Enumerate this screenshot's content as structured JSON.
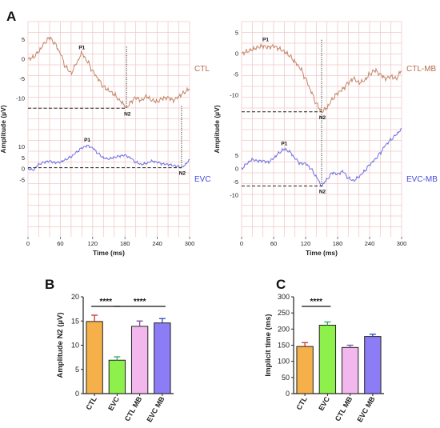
{
  "colors": {
    "grid": "#f1c9c9",
    "ctl_trace": "#c4866a",
    "evc_trace": "#6f6fe3",
    "ctl_label": "#b66a4c",
    "evc_label": "#4a4ae0",
    "bar_ctl": "#f5b04a",
    "bar_evc": "#8ef04a",
    "bar_ctl_mb": "#f2b8ee",
    "bar_evc_mb": "#8c7cf5",
    "err_ctl": "#c0392b",
    "err_evc": "#2ea46a",
    "err_ctl_mb": "#7a4aa0",
    "err_evc_mb": "#2a4ab0"
  },
  "panel_labels": {
    "a": "A",
    "b": "B",
    "c": "C"
  },
  "chart_data": [
    {
      "id": "A-left",
      "type": "line",
      "xlabel": "Time (ms)",
      "ylabel": "Amplitude (µV)",
      "xticks": [
        "0",
        "60",
        "120",
        "180",
        "240",
        "300"
      ],
      "yticks_upper": [
        "5",
        "0",
        "-5",
        "-10"
      ],
      "yticks_lower": [
        "10",
        "5",
        "0",
        "-5"
      ],
      "xlim": [
        0,
        300
      ],
      "grid": true,
      "series": [
        {
          "name": "CTL",
          "peak_labels": [
            "P1",
            "N2"
          ],
          "p1": [
            100,
            1.5
          ],
          "n2": [
            183,
            -12.5
          ],
          "x": [
            0,
            10,
            20,
            30,
            40,
            50,
            60,
            70,
            80,
            90,
            100,
            110,
            120,
            130,
            140,
            150,
            160,
            170,
            180,
            183,
            190,
            200,
            210,
            220,
            230,
            240,
            250,
            260,
            270,
            280,
            290,
            300
          ],
          "y": [
            0,
            0.5,
            2,
            4,
            5.5,
            4,
            1.5,
            -2,
            -3.5,
            -1,
            1.5,
            -0.5,
            -3,
            -5,
            -7,
            -8,
            -9,
            -10.5,
            -11.8,
            -12.5,
            -11,
            -9.8,
            -10.5,
            -9.5,
            -10.5,
            -10.8,
            -10,
            -9.8,
            -10.5,
            -9.5,
            -8.5,
            -7.5
          ]
        },
        {
          "name": "EVC",
          "peak_labels": [
            "P1",
            "N2"
          ],
          "p1": [
            110,
            10.5
          ],
          "n2": [
            285,
            0.5
          ],
          "x": [
            0,
            10,
            20,
            30,
            40,
            50,
            60,
            70,
            80,
            90,
            100,
            110,
            120,
            130,
            140,
            150,
            160,
            170,
            180,
            190,
            200,
            210,
            220,
            230,
            240,
            250,
            260,
            270,
            280,
            285,
            290,
            300
          ],
          "y": [
            0,
            -0.5,
            2,
            3,
            3.5,
            2.8,
            3,
            4.2,
            5.5,
            7.5,
            9.5,
            10.5,
            9.5,
            7,
            5,
            4.5,
            5.2,
            5.8,
            6.2,
            5,
            3,
            2,
            2.5,
            3.5,
            3,
            2.2,
            2,
            1.5,
            1,
            0.5,
            1.5,
            4
          ]
        }
      ]
    },
    {
      "id": "A-right",
      "type": "line",
      "xlabel": "Time (ms)",
      "ylabel": "Amplitude (µV)",
      "xticks": [
        "0",
        "60",
        "120",
        "180",
        "240",
        "300"
      ],
      "yticks_upper": [
        "5",
        "0",
        "-5",
        "-10"
      ],
      "yticks_lower": [
        "5",
        "0",
        "-5",
        "-10"
      ],
      "xlim": [
        0,
        300
      ],
      "grid": true,
      "series": [
        {
          "name": "CTL-MB",
          "peak_labels": [
            "P1",
            "N2"
          ],
          "p1": [
            45,
            2
          ],
          "n2": [
            150,
            -14
          ],
          "x": [
            0,
            10,
            20,
            30,
            40,
            50,
            60,
            70,
            80,
            90,
            100,
            110,
            120,
            130,
            140,
            150,
            160,
            170,
            180,
            190,
            200,
            210,
            220,
            230,
            240,
            250,
            260,
            270,
            280,
            290,
            300
          ],
          "y": [
            0,
            0.5,
            1,
            1.5,
            1.8,
            1.5,
            1.8,
            1.2,
            0.5,
            -0.5,
            -2,
            -3.5,
            -6,
            -9,
            -12,
            -14,
            -13,
            -11,
            -9.5,
            -8.5,
            -7,
            -6,
            -7,
            -6.5,
            -5,
            -4,
            -5,
            -6,
            -5.5,
            -6,
            -4
          ]
        },
        {
          "name": "EVC-MB",
          "peak_labels": [
            "P1",
            "N2"
          ],
          "p1": [
            80,
            7.5
          ],
          "n2": [
            150,
            -6.5
          ],
          "x": [
            0,
            10,
            20,
            30,
            40,
            50,
            60,
            70,
            80,
            90,
            100,
            110,
            120,
            130,
            140,
            150,
            160,
            170,
            180,
            190,
            200,
            210,
            220,
            230,
            240,
            250,
            260,
            270,
            280,
            290,
            300
          ],
          "y": [
            0,
            2,
            3.5,
            3,
            3,
            2.5,
            4,
            6,
            7.5,
            6.5,
            4,
            2,
            2,
            0,
            -3,
            -6.5,
            -4,
            -1.5,
            -2,
            -1,
            -3.5,
            -4.5,
            -3,
            -1,
            1.5,
            3.5,
            6,
            9,
            11,
            13,
            15
          ]
        }
      ]
    },
    {
      "id": "B",
      "type": "bar",
      "ylabel": "Amplitude N2 (µV)",
      "ylim": [
        0,
        20
      ],
      "yticks": [
        "0",
        "5",
        "10",
        "15",
        "20"
      ],
      "categories": [
        "CTL",
        "EVC",
        "CTL MB",
        "EVC MB"
      ],
      "values": [
        14.9,
        6.9,
        13.9,
        14.6
      ],
      "errors": [
        1.3,
        0.7,
        1.1,
        0.9
      ],
      "significance": [
        {
          "from": 0,
          "to": 1,
          "label": "****"
        },
        {
          "from": 1,
          "to": 3,
          "label": "****"
        }
      ]
    },
    {
      "id": "C",
      "type": "bar",
      "ylabel": "Implicit time (ms)",
      "ylim": [
        0,
        300
      ],
      "yticks": [
        "0",
        "50",
        "100",
        "150",
        "200",
        "250",
        "300"
      ],
      "categories": [
        "CTL",
        "EVC",
        "CTL MB",
        "EVC MB"
      ],
      "values": [
        146,
        212,
        143,
        177
      ],
      "errors": [
        12,
        10,
        7,
        7
      ],
      "significance": [
        {
          "from": 0,
          "to": 1,
          "label": "****"
        }
      ]
    }
  ]
}
